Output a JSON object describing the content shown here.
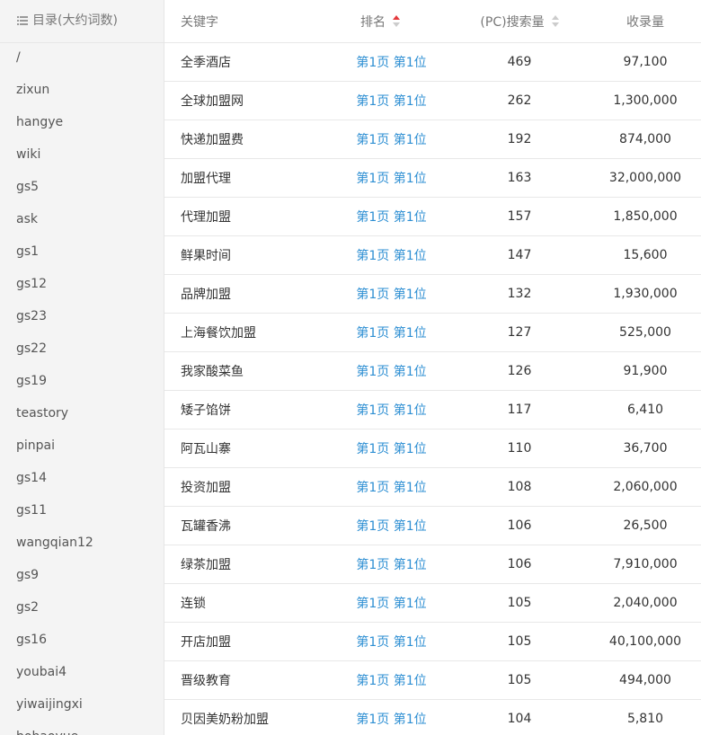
{
  "sidebar": {
    "title": "目录(大约词数)",
    "items": [
      "/",
      "zixun",
      "hangye",
      "wiki",
      "gs5",
      "ask",
      "gs1",
      "gs12",
      "gs23",
      "gs22",
      "gs19",
      "teastory",
      "pinpai",
      "gs14",
      "gs11",
      "wangqian12",
      "gs9",
      "gs2",
      "gs16",
      "youbai4",
      "yiwaijingxi",
      "bohaoyue"
    ]
  },
  "table": {
    "headers": [
      "关键字",
      "排名",
      "(PC)搜索量",
      "收录量"
    ],
    "rows": [
      [
        "全季酒店",
        "第1页 第1位",
        "469",
        "97,100"
      ],
      [
        "全球加盟网",
        "第1页 第1位",
        "262",
        "1,300,000"
      ],
      [
        "快递加盟费",
        "第1页 第1位",
        "192",
        "874,000"
      ],
      [
        "加盟代理",
        "第1页 第1位",
        "163",
        "32,000,000"
      ],
      [
        "代理加盟",
        "第1页 第1位",
        "157",
        "1,850,000"
      ],
      [
        "鲜果时间",
        "第1页 第1位",
        "147",
        "15,600"
      ],
      [
        "品牌加盟",
        "第1页 第1位",
        "132",
        "1,930,000"
      ],
      [
        "上海餐饮加盟",
        "第1页 第1位",
        "127",
        "525,000"
      ],
      [
        "我家酸菜鱼",
        "第1页 第1位",
        "126",
        "91,900"
      ],
      [
        "矮子馅饼",
        "第1页 第1位",
        "117",
        "6,410"
      ],
      [
        "阿瓦山寨",
        "第1页 第1位",
        "110",
        "36,700"
      ],
      [
        "投资加盟",
        "第1页 第1位",
        "108",
        "2,060,000"
      ],
      [
        "瓦罐香沸",
        "第1页 第1位",
        "106",
        "26,500"
      ],
      [
        "绿茶加盟",
        "第1页 第1位",
        "106",
        "7,910,000"
      ],
      [
        "连锁",
        "第1页 第1位",
        "105",
        "2,040,000"
      ],
      [
        "开店加盟",
        "第1页 第1位",
        "105",
        "40,100,000"
      ],
      [
        "晋级教育",
        "第1页 第1位",
        "105",
        "494,000"
      ],
      [
        "贝因美奶粉加盟",
        "第1页 第1位",
        "104",
        "5,810"
      ]
    ]
  }
}
